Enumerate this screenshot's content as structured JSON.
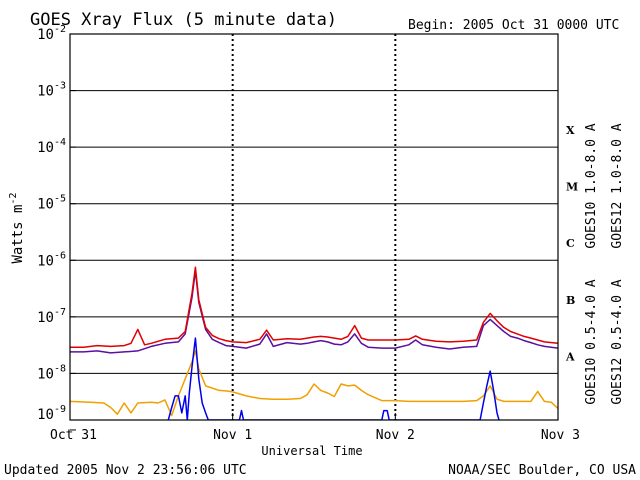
{
  "header": {
    "title": "GOES Xray Flux (5 minute data)",
    "begin": "Begin:  2005 Oct 31 0000 UTC"
  },
  "footer": {
    "updated": "Updated 2005 Nov  2 23:56:06 UTC",
    "credit": "NOAA/SEC Boulder, CO USA"
  },
  "colors": {
    "goes10_long": "#5a10a0",
    "goes12_long": "#e00000",
    "goes10_short": "#f0a000",
    "goes12_short": "#0000f0"
  },
  "chart_data": {
    "type": "line",
    "title": "GOES Xray Flux (5 minute data)",
    "xlabel": "Universal Time",
    "ylabel": "Watts m",
    "ylabel_sup": "-2",
    "yscale": "log",
    "ylim": [
      1.5e-09,
      0.01
    ],
    "xlim": [
      0,
      72
    ],
    "x_unit": "hours since 2005 Oct 31 0000 UTC",
    "x_ticks": [
      {
        "label": "Oct 31",
        "x": 0
      },
      {
        "label": "Nov 1",
        "x": 24
      },
      {
        "label": "Nov 2",
        "x": 48
      },
      {
        "label": "Nov 3",
        "x": 72
      }
    ],
    "y_ticks": [
      {
        "base": "10",
        "exp": "-2",
        "value": 0.01
      },
      {
        "base": "10",
        "exp": "-3",
        "value": 0.001
      },
      {
        "base": "10",
        "exp": "-4",
        "value": 0.0001
      },
      {
        "base": "10",
        "exp": "-5",
        "value": 1e-05
      },
      {
        "base": "10",
        "exp": "-6",
        "value": 1e-06
      },
      {
        "base": "10",
        "exp": "-7",
        "value": 1e-07
      },
      {
        "base": "10",
        "exp": "-8",
        "value": 1e-08
      },
      {
        "base": "10",
        "exp": "-9",
        "value": 1e-09
      }
    ],
    "flare_classes": [
      {
        "label": "X",
        "value": 0.0002
      },
      {
        "label": "M",
        "value": 2e-05
      },
      {
        "label": "C",
        "value": 2e-06
      },
      {
        "label": "B",
        "value": 2e-07
      },
      {
        "label": "A",
        "value": 2e-08
      }
    ],
    "series": [
      {
        "name": "GOES10 1.0-8.0 A",
        "color": "#5a10a0",
        "points": [
          [
            0,
            2.4e-08
          ],
          [
            2,
            2.4e-08
          ],
          [
            4,
            2.5e-08
          ],
          [
            6,
            2.3e-08
          ],
          [
            8,
            2.4e-08
          ],
          [
            10,
            2.5e-08
          ],
          [
            12,
            3e-08
          ],
          [
            14,
            3.4e-08
          ],
          [
            16,
            3.6e-08
          ],
          [
            17,
            5e-08
          ],
          [
            18,
            2.2e-07
          ],
          [
            18.5,
            6.5e-07
          ],
          [
            19,
            1.8e-07
          ],
          [
            20,
            6e-08
          ],
          [
            21,
            4e-08
          ],
          [
            22,
            3.5e-08
          ],
          [
            23,
            3.1e-08
          ],
          [
            24,
            3e-08
          ],
          [
            26,
            2.8e-08
          ],
          [
            28,
            3.3e-08
          ],
          [
            29,
            5e-08
          ],
          [
            30,
            3e-08
          ],
          [
            32,
            3.5e-08
          ],
          [
            34,
            3.3e-08
          ],
          [
            35,
            3.4e-08
          ],
          [
            36,
            3.6e-08
          ],
          [
            37,
            3.8e-08
          ],
          [
            38,
            3.6e-08
          ],
          [
            39,
            3.3e-08
          ],
          [
            40,
            3.2e-08
          ],
          [
            41,
            3.6e-08
          ],
          [
            42,
            5e-08
          ],
          [
            43,
            3.4e-08
          ],
          [
            44,
            2.9e-08
          ],
          [
            46,
            2.8e-08
          ],
          [
            48,
            2.8e-08
          ],
          [
            50,
            3.2e-08
          ],
          [
            51,
            3.9e-08
          ],
          [
            52,
            3.2e-08
          ],
          [
            54,
            2.9e-08
          ],
          [
            56,
            2.7e-08
          ],
          [
            58,
            2.9e-08
          ],
          [
            60,
            3e-08
          ],
          [
            61,
            7e-08
          ],
          [
            62,
            9e-08
          ],
          [
            63,
            7e-08
          ],
          [
            64,
            5.5e-08
          ],
          [
            65,
            4.5e-08
          ],
          [
            66,
            4.2e-08
          ],
          [
            67,
            3.8e-08
          ],
          [
            68,
            3.5e-08
          ],
          [
            69,
            3.2e-08
          ],
          [
            70,
            3e-08
          ],
          [
            72,
            2.8e-08
          ]
        ]
      },
      {
        "name": "GOES12 1.0-8.0 A",
        "color": "#e00000",
        "points": [
          [
            0,
            2.9e-08
          ],
          [
            2,
            2.9e-08
          ],
          [
            4,
            3.1e-08
          ],
          [
            6,
            3e-08
          ],
          [
            8,
            3.1e-08
          ],
          [
            9,
            3.4e-08
          ],
          [
            10,
            6e-08
          ],
          [
            11,
            3.2e-08
          ],
          [
            12,
            3.4e-08
          ],
          [
            14,
            4e-08
          ],
          [
            16,
            4.2e-08
          ],
          [
            17,
            5.5e-08
          ],
          [
            18,
            2.6e-07
          ],
          [
            18.5,
            7.5e-07
          ],
          [
            19,
            2e-07
          ],
          [
            20,
            6.5e-08
          ],
          [
            21,
            4.7e-08
          ],
          [
            22,
            4.1e-08
          ],
          [
            23,
            3.8e-08
          ],
          [
            24,
            3.6e-08
          ],
          [
            26,
            3.5e-08
          ],
          [
            28,
            4e-08
          ],
          [
            29,
            5.8e-08
          ],
          [
            30,
            3.9e-08
          ],
          [
            32,
            4.1e-08
          ],
          [
            34,
            4e-08
          ],
          [
            35,
            4.2e-08
          ],
          [
            36,
            4.4e-08
          ],
          [
            37,
            4.5e-08
          ],
          [
            38,
            4.4e-08
          ],
          [
            39,
            4.2e-08
          ],
          [
            40,
            4e-08
          ],
          [
            41,
            4.5e-08
          ],
          [
            42,
            7e-08
          ],
          [
            43,
            4.2e-08
          ],
          [
            44,
            3.9e-08
          ],
          [
            46,
            3.9e-08
          ],
          [
            48,
            3.9e-08
          ],
          [
            50,
            4e-08
          ],
          [
            51,
            4.6e-08
          ],
          [
            52,
            4e-08
          ],
          [
            54,
            3.7e-08
          ],
          [
            56,
            3.6e-08
          ],
          [
            58,
            3.7e-08
          ],
          [
            60,
            3.9e-08
          ],
          [
            61,
            8e-08
          ],
          [
            62,
            1.15e-07
          ],
          [
            63,
            8.5e-08
          ],
          [
            64,
            6.5e-08
          ],
          [
            65,
            5.5e-08
          ],
          [
            66,
            5e-08
          ],
          [
            67,
            4.5e-08
          ],
          [
            68,
            4.2e-08
          ],
          [
            69,
            3.9e-08
          ],
          [
            70,
            3.6e-08
          ],
          [
            72,
            3.4e-08
          ]
        ]
      },
      {
        "name": "GOES10 0.5-4.0 A",
        "color": "#f0a000",
        "points": [
          [
            0,
            3.2e-09
          ],
          [
            3,
            3.1e-09
          ],
          [
            5,
            3e-09
          ],
          [
            6,
            2.5e-09
          ],
          [
            7,
            1.9e-09
          ],
          [
            8,
            3e-09
          ],
          [
            9,
            2e-09
          ],
          [
            10,
            3e-09
          ],
          [
            12,
            3.1e-09
          ],
          [
            13,
            3e-09
          ],
          [
            14,
            3.4e-09
          ],
          [
            15,
            1.8e-09
          ],
          [
            16,
            4e-09
          ],
          [
            17,
            8e-09
          ],
          [
            18,
            1.6e-08
          ],
          [
            18.5,
            2.5e-08
          ],
          [
            19,
            1.2e-08
          ],
          [
            20,
            6e-09
          ],
          [
            21,
            5.5e-09
          ],
          [
            22,
            5e-09
          ],
          [
            23,
            4.9e-09
          ],
          [
            24,
            4.7e-09
          ],
          [
            26,
            4e-09
          ],
          [
            28,
            3.6e-09
          ],
          [
            30,
            3.5e-09
          ],
          [
            32,
            3.5e-09
          ],
          [
            34,
            3.6e-09
          ],
          [
            35,
            4.2e-09
          ],
          [
            36,
            6.5e-09
          ],
          [
            37,
            5e-09
          ],
          [
            38,
            4.5e-09
          ],
          [
            39,
            3.9e-09
          ],
          [
            40,
            6.5e-09
          ],
          [
            41,
            6e-09
          ],
          [
            42,
            6.2e-09
          ],
          [
            43,
            5e-09
          ],
          [
            44,
            4.2e-09
          ],
          [
            46,
            3.3e-09
          ],
          [
            48,
            3.3e-09
          ],
          [
            50,
            3.2e-09
          ],
          [
            52,
            3.2e-09
          ],
          [
            54,
            3.2e-09
          ],
          [
            56,
            3.2e-09
          ],
          [
            58,
            3.2e-09
          ],
          [
            60,
            3.3e-09
          ],
          [
            61,
            4e-09
          ],
          [
            62,
            6e-09
          ],
          [
            63,
            3.5e-09
          ],
          [
            64,
            3.2e-09
          ],
          [
            66,
            3.2e-09
          ],
          [
            68,
            3.2e-09
          ],
          [
            69,
            4.8e-09
          ],
          [
            70,
            3.2e-09
          ],
          [
            71,
            3.1e-09
          ],
          [
            72,
            2.4e-09
          ]
        ]
      },
      {
        "name": "GOES12 0.5-4.0 A",
        "color": "#0000f0",
        "points": [
          [
            14.5,
            1.5e-09
          ],
          [
            15,
            2.5e-09
          ],
          [
            15.5,
            4e-09
          ],
          [
            16,
            4e-09
          ],
          [
            16.5,
            2e-09
          ],
          [
            17,
            4e-09
          ],
          [
            17.3,
            1.5e-09
          ],
          [
            17.6,
            4.5e-09
          ],
          [
            18,
            1.3e-08
          ],
          [
            18.5,
            4.2e-08
          ],
          [
            19,
            8e-09
          ],
          [
            19.5,
            3e-09
          ],
          [
            20,
            2e-09
          ],
          [
            20.4,
            1.5e-09
          ],
          [
            25,
            1.5e-09
          ],
          [
            25.3,
            2.2e-09
          ],
          [
            25.6,
            1.5e-09
          ],
          [
            46,
            1.5e-09
          ],
          [
            46.3,
            2.2e-09
          ],
          [
            46.8,
            2.2e-09
          ],
          [
            47.1,
            1.5e-09
          ],
          [
            60.5,
            1.5e-09
          ],
          [
            61,
            3e-09
          ],
          [
            61.5,
            6e-09
          ],
          [
            62,
            1.1e-08
          ],
          [
            62.5,
            5e-09
          ],
          [
            63,
            2e-09
          ],
          [
            63.3,
            1.5e-09
          ]
        ]
      }
    ],
    "legend": "right, rotated",
    "grid": "horizontal decades; vertical dotted day lines"
  }
}
